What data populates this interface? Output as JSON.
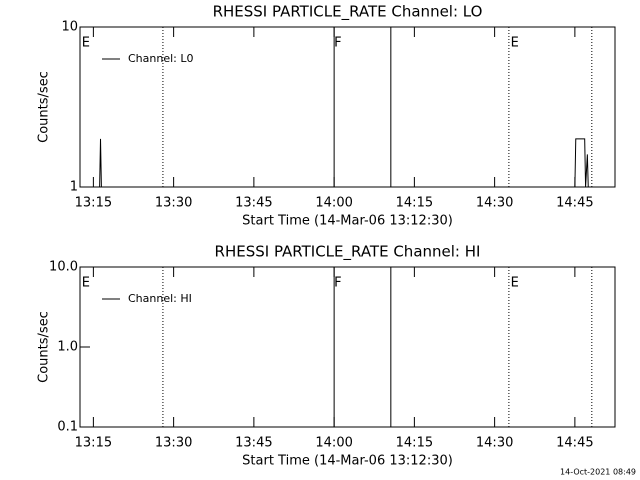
{
  "chart_data": [
    {
      "type": "line",
      "title": "RHESSI PARTICLE_RATE Channel: LO",
      "xlabel": "Start Time (14-Mar-06 13:12:30)",
      "ylabel": "Counts/sec",
      "log_y": true,
      "ylim": [
        1,
        10
      ],
      "yticks": [
        1,
        10
      ],
      "xlim": [
        "13:12:30",
        "14:52:30"
      ],
      "xticks": [
        "13:15",
        "13:30",
        "13:45",
        "14:00",
        "14:15",
        "14:30",
        "14:45"
      ],
      "legend": "top-left",
      "series": [
        {
          "name": "Channel: L0",
          "color": "#000000",
          "x": [
            "13:16:00",
            "13:16:10",
            "13:16:20",
            "13:16:30",
            "14:45:00",
            "14:45:10",
            "14:46:50",
            "14:47:00",
            "14:47:20",
            "14:47:30"
          ],
          "values": [
            1,
            1,
            2,
            1,
            1,
            2,
            2,
            1,
            1.6,
            1
          ]
        }
      ],
      "vlines": [
        {
          "x": "13:28:00",
          "style": "dotted"
        },
        {
          "x": "14:00:00",
          "style": "solid"
        },
        {
          "x": "14:10:36",
          "style": "solid"
        },
        {
          "x": "14:32:40",
          "style": "dotted"
        },
        {
          "x": "14:48:10",
          "style": "dotted"
        }
      ],
      "annotations": [
        {
          "text": "E",
          "x": "13:12:50"
        },
        {
          "text": "F",
          "x": "14:00:00"
        },
        {
          "text": "E",
          "x": "14:33:00"
        }
      ]
    },
    {
      "type": "line",
      "title": "RHESSI PARTICLE_RATE Channel: HI",
      "xlabel": "Start Time (14-Mar-06 13:12:30)",
      "ylabel": "Counts/sec",
      "log_y": true,
      "ylim": [
        0.1,
        10
      ],
      "yticks": [
        {
          "value": 0.1,
          "label": "0.1"
        },
        {
          "value": 1,
          "label": "1.0"
        },
        {
          "value": 10,
          "label": "10.0"
        }
      ],
      "xlim": [
        "13:12:30",
        "14:52:30"
      ],
      "xticks": [
        "13:15",
        "13:30",
        "13:45",
        "14:00",
        "14:15",
        "14:30",
        "14:45"
      ],
      "legend": "top-left",
      "series": [
        {
          "name": "Channel: HI",
          "color": "#000000",
          "x": [],
          "values": []
        }
      ],
      "vlines": [
        {
          "x": "13:28:00",
          "style": "dotted"
        },
        {
          "x": "14:00:00",
          "style": "solid"
        },
        {
          "x": "14:10:36",
          "style": "solid"
        },
        {
          "x": "14:32:40",
          "style": "dotted"
        },
        {
          "x": "14:48:10",
          "style": "dotted"
        }
      ],
      "annotations": [
        {
          "text": "E",
          "x": "13:12:50"
        },
        {
          "text": "F",
          "x": "14:00:00"
        },
        {
          "text": "E",
          "x": "14:33:00"
        }
      ]
    }
  ],
  "footer": "14-Oct-2021 08:49"
}
